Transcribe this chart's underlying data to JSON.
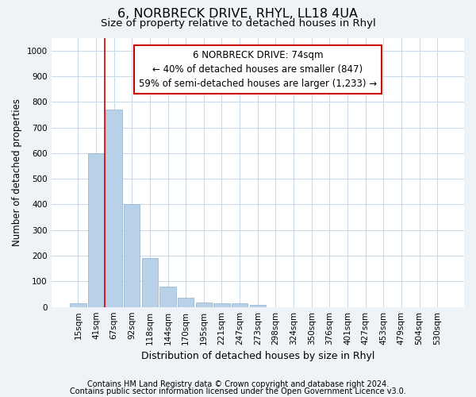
{
  "title": "6, NORBRECK DRIVE, RHYL, LL18 4UA",
  "subtitle": "Size of property relative to detached houses in Rhyl",
  "xlabel": "Distribution of detached houses by size in Rhyl",
  "ylabel": "Number of detached properties",
  "footnote1": "Contains HM Land Registry data © Crown copyright and database right 2024.",
  "footnote2": "Contains public sector information licensed under the Open Government Licence v3.0.",
  "bar_labels": [
    "15sqm",
    "41sqm",
    "67sqm",
    "92sqm",
    "118sqm",
    "144sqm",
    "170sqm",
    "195sqm",
    "221sqm",
    "247sqm",
    "273sqm",
    "298sqm",
    "324sqm",
    "350sqm",
    "376sqm",
    "401sqm",
    "427sqm",
    "453sqm",
    "479sqm",
    "504sqm",
    "530sqm"
  ],
  "bar_values": [
    15,
    600,
    770,
    400,
    190,
    78,
    37,
    18,
    13,
    13,
    8,
    0,
    0,
    0,
    0,
    0,
    0,
    0,
    0,
    0,
    0
  ],
  "bar_color": "#b8d0e8",
  "bar_edge_color": "#8ab0d0",
  "vline_x": 1.5,
  "vline_color": "#cc0000",
  "annotation_text": "6 NORBRECK DRIVE: 74sqm\n← 40% of detached houses are smaller (847)\n59% of semi-detached houses are larger (1,233) →",
  "annotation_box_color": "white",
  "annotation_box_edgecolor": "#cc0000",
  "ylim": [
    0,
    1050
  ],
  "yticks": [
    0,
    100,
    200,
    300,
    400,
    500,
    600,
    700,
    800,
    900,
    1000
  ],
  "bg_color": "#eef3f8",
  "plot_bg_color": "white",
  "grid_color": "#c8d8e8",
  "title_fontsize": 11.5,
  "subtitle_fontsize": 9.5,
  "xlabel_fontsize": 9,
  "ylabel_fontsize": 8.5,
  "tick_fontsize": 7.5,
  "annotation_fontsize": 8.5,
  "footnote_fontsize": 7
}
